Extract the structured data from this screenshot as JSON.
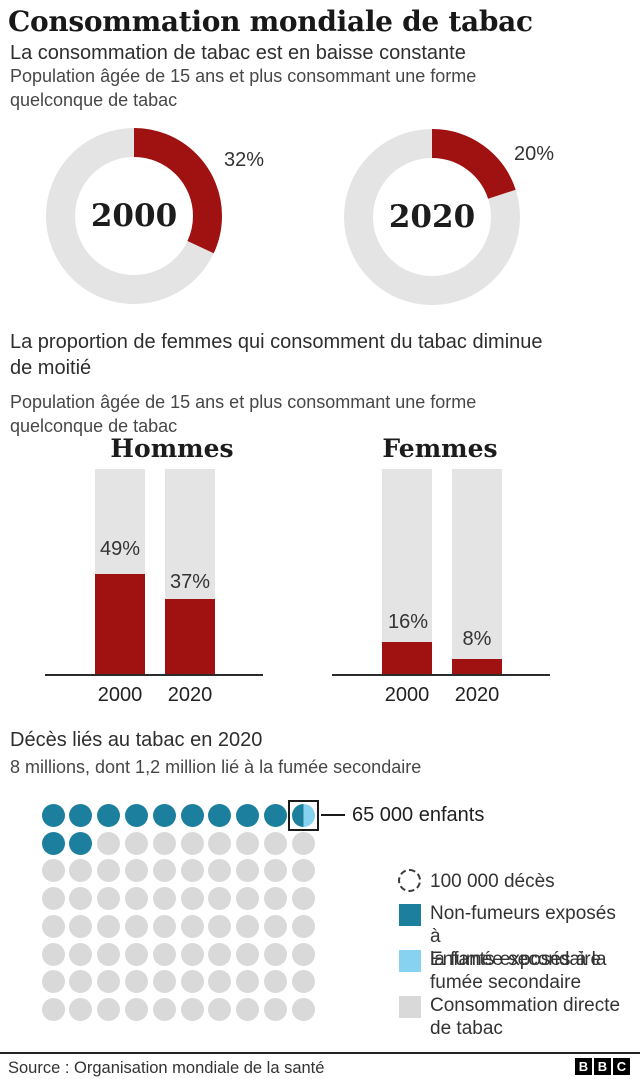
{
  "page": {
    "title": "Consommation mondiale de tabac",
    "subtitle": "La consommation de tabac est en baisse constante"
  },
  "colors": {
    "red": "#a01111",
    "teal": "#1c7f9e",
    "light_blue": "#87d2f0",
    "bar_gray": "#e4e4e4",
    "dot_gray": "#d9d9d9"
  },
  "chart_data": [
    {
      "type": "pie",
      "subtype": "donut-pair",
      "note": "Population âgée de 15 ans et plus consommant une forme\nquelconque de tabac",
      "unit": "percent",
      "items": [
        {
          "year": "2000",
          "value": 32,
          "label": "32%"
        },
        {
          "year": "2020",
          "value": 20,
          "label": "20%"
        }
      ]
    },
    {
      "type": "bar",
      "title": "La proportion de femmes qui consomment du tabac diminue\nde moitié",
      "note": "Population âgée de 15 ans et plus consommant une forme\nquelconque de tabac",
      "ylim": [
        0,
        100
      ],
      "categories": [
        "2000",
        "2020"
      ],
      "series": [
        {
          "name": "Hommes",
          "values": [
            49,
            37
          ],
          "labels": [
            "49%",
            "37%"
          ]
        },
        {
          "name": "Femmes",
          "values": [
            16,
            8
          ],
          "labels": [
            "16%",
            "8%"
          ]
        }
      ]
    },
    {
      "type": "heatmap",
      "subtype": "dot-matrix",
      "title": "Décès liés au tabac en 2020",
      "subtitle": "8 millions, dont 1,2 million lié à la fumée secondaire",
      "dot_unit_deaths": 100000,
      "rows": 8,
      "cols": 10,
      "pattern": [
        "TTTTTTTTTS",
        "TTGGGGGGGG",
        "GGGGGGGGGG",
        "GGGGGGGGGG",
        "GGGGGGGGGG",
        "GGGGGGGGGG",
        "GGGGGGGGGG",
        "GGGGGGGGGG"
      ],
      "annotation": "65 000 enfants",
      "legend": [
        {
          "swatch": "dashed-circle",
          "label": "100 000 décès"
        },
        {
          "swatch": "teal",
          "label": "Non-fumeurs exposés à\nla fumée secondaire"
        },
        {
          "swatch": "light_blue",
          "label": "Enfants exposés à la\nfumée secondaire"
        },
        {
          "swatch": "gray",
          "label": "Consommation directe\nde tabac"
        }
      ]
    }
  ],
  "footer": {
    "source": "Source : Organisation mondiale de la santé",
    "logo_letters": [
      "B",
      "B",
      "C"
    ]
  }
}
